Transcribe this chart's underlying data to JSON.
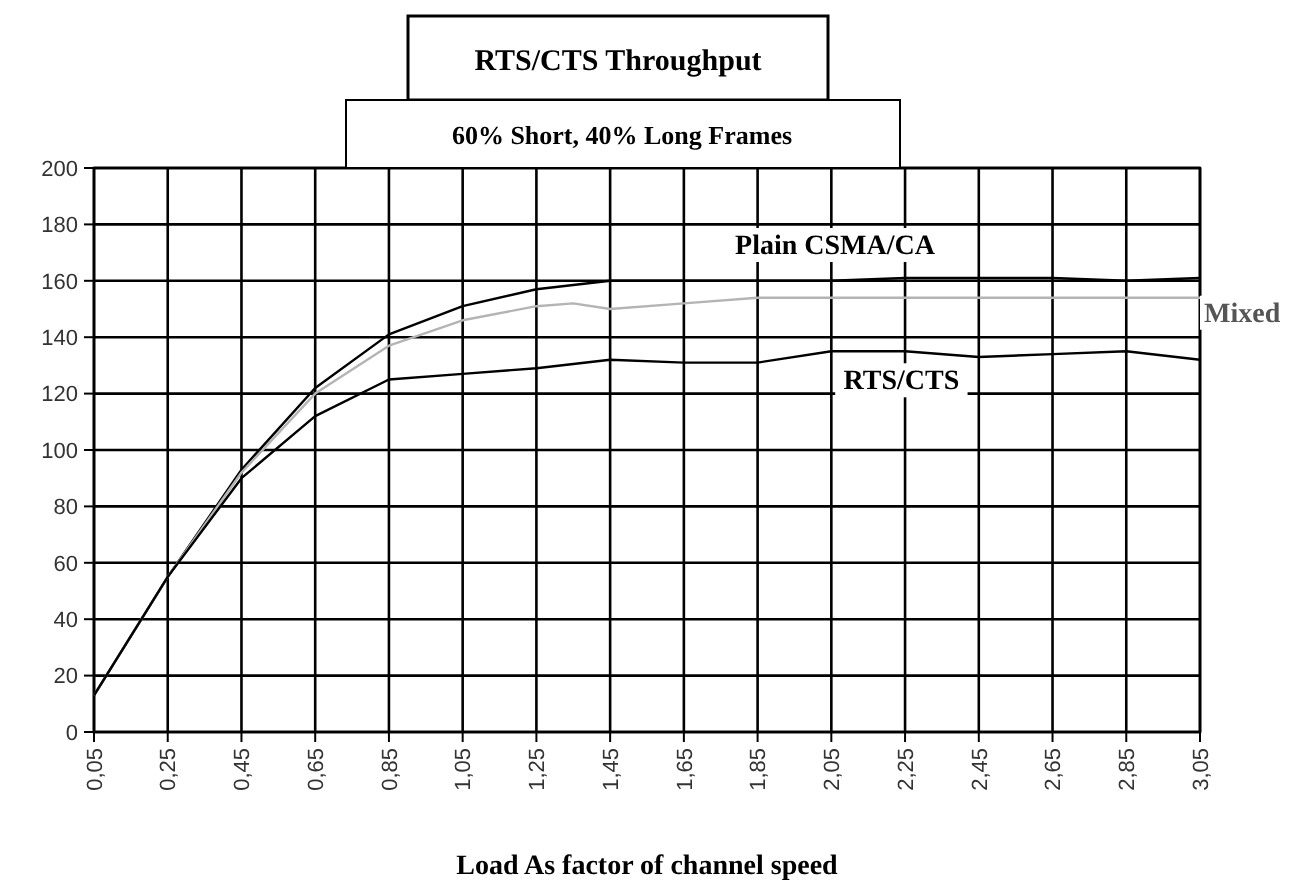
{
  "chart_data": {
    "type": "line",
    "title": "RTS/CTS Throughput",
    "subtitle": "60% Short, 40% Long Frames",
    "xlabel": "Load As factor of channel speed",
    "xlim": [
      0.05,
      3.05
    ],
    "xticks": [
      {
        "value": 0.05,
        "label": "0,05"
      },
      {
        "value": 0.25,
        "label": "0,25"
      },
      {
        "value": 0.45,
        "label": "0,45"
      },
      {
        "value": 0.65,
        "label": "0,65"
      },
      {
        "value": 0.85,
        "label": "0,85"
      },
      {
        "value": 1.05,
        "label": "1,05"
      },
      {
        "value": 1.25,
        "label": "1,25"
      },
      {
        "value": 1.45,
        "label": "1,45"
      },
      {
        "value": 1.65,
        "label": "1,65"
      },
      {
        "value": 1.85,
        "label": "1,85"
      },
      {
        "value": 2.05,
        "label": "2,05"
      },
      {
        "value": 2.25,
        "label": "2,25"
      },
      {
        "value": 2.45,
        "label": "2,45"
      },
      {
        "value": 2.65,
        "label": "2,65"
      },
      {
        "value": 2.85,
        "label": "2,85"
      },
      {
        "value": 3.05,
        "label": "3,05"
      }
    ],
    "ylim": [
      0,
      200
    ],
    "yticks": [
      0,
      20,
      40,
      60,
      80,
      100,
      120,
      140,
      160,
      180,
      200
    ],
    "grid": true,
    "series": [
      {
        "name": "Plain CSMA/CA",
        "color": "#000000",
        "x": [
          0.05,
          0.25,
          0.45,
          0.65,
          0.85,
          1.05,
          1.25,
          1.45,
          1.65,
          1.85,
          2.05,
          2.25,
          2.45,
          2.65,
          2.85,
          3.05
        ],
        "values": [
          13,
          55,
          93,
          122,
          141,
          151,
          157,
          160,
          160,
          160,
          160,
          161,
          161,
          161,
          160,
          161
        ]
      },
      {
        "name": "Mixed",
        "color": "#b4b4b4",
        "x": [
          0.05,
          0.25,
          0.45,
          0.65,
          0.85,
          1.05,
          1.25,
          1.35,
          1.45,
          1.65,
          1.85,
          2.05,
          2.45,
          3.05
        ],
        "values": [
          13,
          55,
          92,
          120,
          137,
          146,
          151,
          152,
          150,
          152,
          154,
          154,
          154,
          154
        ]
      },
      {
        "name": "RTS/CTS",
        "color": "#000000",
        "x": [
          0.05,
          0.25,
          0.45,
          0.65,
          0.85,
          1.05,
          1.25,
          1.45,
          1.65,
          1.85,
          2.05,
          2.25,
          2.45,
          2.65,
          2.85,
          3.05
        ],
        "values": [
          13,
          55,
          90,
          112,
          125,
          127,
          129,
          132,
          131,
          131,
          135,
          135,
          133,
          134,
          135,
          132
        ]
      }
    ]
  }
}
